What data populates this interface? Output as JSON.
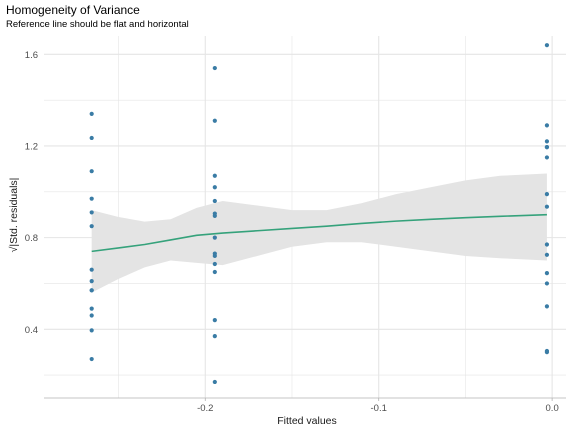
{
  "chart_data": {
    "type": "scatter",
    "title": "Homogeneity of Variance",
    "subtitle": "Reference line should be flat and horizontal",
    "xlabel": "Fitted values",
    "ylabel": "√|Std. residuals|",
    "xlim": [
      -0.293,
      0.008
    ],
    "ylim": [
      0.1,
      1.68
    ],
    "x_ticks": [
      -0.2,
      -0.1,
      0.0
    ],
    "x_tick_labels": [
      "-0.2",
      "-0.1",
      "0.0"
    ],
    "y_ticks": [
      0.4,
      0.8,
      1.2,
      1.6
    ],
    "y_tick_labels": [
      "0.4",
      "0.8",
      "1.2",
      "1.6"
    ],
    "grid": true,
    "colors": {
      "points": "#3a7ca5",
      "smooth": "#35a27b",
      "band": "#e4e4e4",
      "grid": "#e5e5e5"
    },
    "points": [
      {
        "x": -0.2655,
        "y": 1.34
      },
      {
        "x": -0.2655,
        "y": 1.235
      },
      {
        "x": -0.2655,
        "y": 1.09
      },
      {
        "x": -0.2655,
        "y": 0.97
      },
      {
        "x": -0.2655,
        "y": 0.91
      },
      {
        "x": -0.2655,
        "y": 0.85
      },
      {
        "x": -0.2655,
        "y": 0.66
      },
      {
        "x": -0.2655,
        "y": 0.61
      },
      {
        "x": -0.2655,
        "y": 0.57
      },
      {
        "x": -0.2655,
        "y": 0.57
      },
      {
        "x": -0.2655,
        "y": 0.49
      },
      {
        "x": -0.2655,
        "y": 0.46
      },
      {
        "x": -0.2655,
        "y": 0.395
      },
      {
        "x": -0.2655,
        "y": 0.27
      },
      {
        "x": -0.1945,
        "y": 1.54
      },
      {
        "x": -0.1945,
        "y": 1.31
      },
      {
        "x": -0.1945,
        "y": 1.07
      },
      {
        "x": -0.1945,
        "y": 1.02
      },
      {
        "x": -0.1945,
        "y": 0.96
      },
      {
        "x": -0.1945,
        "y": 0.905
      },
      {
        "x": -0.1945,
        "y": 0.895
      },
      {
        "x": -0.1945,
        "y": 0.8
      },
      {
        "x": -0.1945,
        "y": 0.73
      },
      {
        "x": -0.1945,
        "y": 0.72
      },
      {
        "x": -0.1945,
        "y": 0.685
      },
      {
        "x": -0.1945,
        "y": 0.65
      },
      {
        "x": -0.1945,
        "y": 0.44
      },
      {
        "x": -0.1945,
        "y": 0.37
      },
      {
        "x": -0.1945,
        "y": 0.17
      },
      {
        "x": -0.003,
        "y": 1.64
      },
      {
        "x": -0.003,
        "y": 1.29
      },
      {
        "x": -0.003,
        "y": 1.22
      },
      {
        "x": -0.003,
        "y": 1.195
      },
      {
        "x": -0.003,
        "y": 1.195
      },
      {
        "x": -0.003,
        "y": 1.15
      },
      {
        "x": -0.003,
        "y": 0.99
      },
      {
        "x": -0.003,
        "y": 0.935
      },
      {
        "x": -0.003,
        "y": 0.77
      },
      {
        "x": -0.003,
        "y": 0.725
      },
      {
        "x": -0.003,
        "y": 0.645
      },
      {
        "x": -0.003,
        "y": 0.6
      },
      {
        "x": -0.003,
        "y": 0.5
      },
      {
        "x": -0.003,
        "y": 0.305
      },
      {
        "x": -0.003,
        "y": 0.3
      }
    ],
    "smooth": [
      {
        "x": -0.2655,
        "y": 0.74,
        "lo": 0.56,
        "hi": 0.92
      },
      {
        "x": -0.25,
        "y": 0.755,
        "lo": 0.62,
        "hi": 0.89
      },
      {
        "x": -0.235,
        "y": 0.77,
        "lo": 0.67,
        "hi": 0.87
      },
      {
        "x": -0.22,
        "y": 0.79,
        "lo": 0.7,
        "hi": 0.88
      },
      {
        "x": -0.205,
        "y": 0.81,
        "lo": 0.69,
        "hi": 0.93
      },
      {
        "x": -0.19,
        "y": 0.82,
        "lo": 0.68,
        "hi": 0.96
      },
      {
        "x": -0.17,
        "y": 0.83,
        "lo": 0.72,
        "hi": 0.94
      },
      {
        "x": -0.15,
        "y": 0.84,
        "lo": 0.76,
        "hi": 0.92
      },
      {
        "x": -0.13,
        "y": 0.85,
        "lo": 0.78,
        "hi": 0.92
      },
      {
        "x": -0.11,
        "y": 0.862,
        "lo": 0.78,
        "hi": 0.95
      },
      {
        "x": -0.09,
        "y": 0.872,
        "lo": 0.76,
        "hi": 0.99
      },
      {
        "x": -0.07,
        "y": 0.88,
        "lo": 0.74,
        "hi": 1.02
      },
      {
        "x": -0.05,
        "y": 0.887,
        "lo": 0.72,
        "hi": 1.05
      },
      {
        "x": -0.03,
        "y": 0.893,
        "lo": 0.71,
        "hi": 1.07
      },
      {
        "x": -0.003,
        "y": 0.9,
        "lo": 0.7,
        "hi": 1.08
      }
    ]
  }
}
